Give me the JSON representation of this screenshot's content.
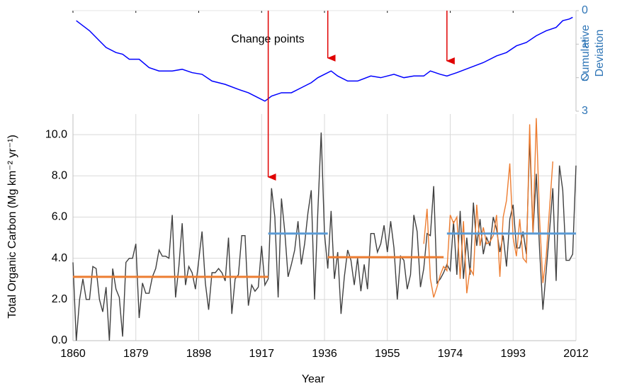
{
  "chart_data": {
    "type": "line",
    "xlabel": "Year",
    "ylabel": "Total Organic Carbon (Mg km⁻² yr⁻¹)",
    "y2label": [
      "Cumulative",
      "Deviation"
    ],
    "annotation": "Change  points",
    "change_points": [
      1919,
      1937,
      1973
    ],
    "xlim": [
      1860,
      2012
    ],
    "xticks": [
      1860,
      1879,
      1898,
      1917,
      1936,
      1955,
      1974,
      1993,
      2012
    ],
    "ylim": [
      0,
      11
    ],
    "yticks": [
      {
        "value": 0,
        "label": "0.0"
      },
      {
        "value": 2,
        "label": "2.0"
      },
      {
        "value": 4,
        "label": "4.0"
      },
      {
        "value": 6,
        "label": "6.0"
      },
      {
        "value": 8,
        "label": "8.0"
      },
      {
        "value": 10,
        "label": "10.0"
      }
    ],
    "y2lim": [
      0,
      3
    ],
    "y2_reversed": true,
    "y2ticks": [
      0,
      1,
      2,
      3
    ],
    "grid": true,
    "x": [
      1860,
      1861,
      1862,
      1863,
      1864,
      1865,
      1866,
      1867,
      1868,
      1869,
      1870,
      1871,
      1872,
      1873,
      1874,
      1875,
      1876,
      1877,
      1878,
      1879,
      1880,
      1881,
      1882,
      1883,
      1884,
      1885,
      1886,
      1887,
      1888,
      1889,
      1890,
      1891,
      1892,
      1893,
      1894,
      1895,
      1896,
      1897,
      1898,
      1899,
      1900,
      1901,
      1902,
      1903,
      1904,
      1905,
      1906,
      1907,
      1908,
      1909,
      1910,
      1911,
      1912,
      1913,
      1914,
      1915,
      1916,
      1917,
      1918,
      1919,
      1920,
      1921,
      1922,
      1923,
      1924,
      1925,
      1926,
      1927,
      1928,
      1929,
      1930,
      1931,
      1932,
      1933,
      1934,
      1935,
      1936,
      1937,
      1938,
      1939,
      1940,
      1941,
      1942,
      1943,
      1944,
      1945,
      1946,
      1947,
      1948,
      1949,
      1950,
      1951,
      1952,
      1953,
      1954,
      1955,
      1956,
      1957,
      1958,
      1959,
      1960,
      1961,
      1962,
      1963,
      1964,
      1965,
      1966,
      1967,
      1968,
      1969,
      1970,
      1971,
      1972,
      1973,
      1974,
      1975,
      1976,
      1977,
      1978,
      1979,
      1980,
      1981,
      1982,
      1983,
      1984,
      1985,
      1986,
      1987,
      1988,
      1989,
      1990,
      1991,
      1992,
      1993,
      1994,
      1995,
      1996,
      1997,
      1998,
      1999,
      2000,
      2001,
      2002,
      2003,
      2004,
      2005,
      2006,
      2007,
      2008,
      2009,
      2010,
      2011,
      2012
    ],
    "series": [
      {
        "color": "#404040",
        "values": [
          3.8,
          0.0,
          2.0,
          3.0,
          2.0,
          2.0,
          3.6,
          3.5,
          2.0,
          1.4,
          2.6,
          0.0,
          3.5,
          2.5,
          2.1,
          0.2,
          3.8,
          4.0,
          4.0,
          4.7,
          1.1,
          2.8,
          2.3,
          2.3,
          3.1,
          3.5,
          4.4,
          4.1,
          4.1,
          4.0,
          6.1,
          2.1,
          3.6,
          5.7,
          2.7,
          3.6,
          3.3,
          2.5,
          3.9,
          5.3,
          2.8,
          1.5,
          3.3,
          3.3,
          3.5,
          3.3,
          2.9,
          5.0,
          1.3,
          3.0,
          3.2,
          5.1,
          5.1,
          1.7,
          2.7,
          2.4,
          2.6,
          4.6,
          2.7,
          3.0,
          7.4,
          6.0,
          2.1,
          6.9,
          5.3,
          3.1,
          3.7,
          4.4,
          5.8,
          3.7,
          4.7,
          6.2,
          7.3,
          2.0,
          6.3,
          10.1,
          5.2,
          3.5,
          6.3,
          3.0,
          4.3,
          1.3,
          3.1,
          4.4,
          3.9,
          2.7,
          4.0,
          2.4,
          3.7,
          2.5,
          5.2,
          5.2,
          4.3,
          4.7,
          5.6,
          4.3,
          5.8,
          4.5,
          2.0,
          4.1,
          3.9,
          2.5,
          3.2,
          6.1,
          5.3,
          2.6,
          3.5,
          5.2,
          5.1,
          7.5,
          2.8,
          3.0,
          3.3,
          3.7,
          3.4,
          5.8,
          3.2,
          6.3,
          3.0,
          5.0,
          3.2,
          6.7,
          4.6,
          5.9,
          4.2,
          5.0,
          4.6,
          6.0,
          5.4,
          4.3,
          5.1,
          3.6,
          5.9,
          6.6,
          4.5,
          4.5,
          5.3,
          4.2,
          9.8,
          5.2,
          8.1,
          4.4,
          1.5,
          3.4,
          5.3,
          7.4,
          2.9,
          8.5,
          7.3,
          3.9,
          3.9,
          4.2,
          8.5
        ]
      },
      {
        "color": "#ed7d31",
        "values": [
          null,
          null,
          null,
          null,
          null,
          null,
          null,
          null,
          null,
          null,
          null,
          null,
          null,
          null,
          null,
          null,
          null,
          null,
          null,
          null,
          null,
          null,
          null,
          null,
          null,
          null,
          null,
          null,
          null,
          null,
          null,
          null,
          null,
          null,
          null,
          null,
          null,
          null,
          null,
          null,
          null,
          null,
          null,
          null,
          null,
          null,
          null,
          null,
          null,
          null,
          null,
          null,
          null,
          null,
          null,
          null,
          null,
          null,
          null,
          null,
          null,
          null,
          null,
          null,
          null,
          null,
          null,
          null,
          null,
          null,
          null,
          null,
          null,
          null,
          null,
          null,
          null,
          null,
          null,
          null,
          null,
          null,
          null,
          null,
          null,
          null,
          null,
          null,
          null,
          null,
          null,
          null,
          null,
          null,
          null,
          null,
          null,
          null,
          null,
          null,
          null,
          null,
          null,
          null,
          null,
          null,
          4.7,
          6.4,
          3.0,
          2.1,
          2.6,
          3.2,
          3.6,
          3.4,
          6.1,
          5.7,
          6.0,
          3.0,
          5.8,
          2.3,
          3.5,
          3.2,
          6.6,
          4.6,
          5.5,
          4.7,
          4.8,
          5.1,
          6.1,
          3.1,
          6.0,
          6.8,
          8.6,
          5.0,
          4.1,
          5.9,
          4.0,
          3.8,
          10.5,
          5.2,
          10.8,
          5.9,
          2.8,
          4.1,
          6.4,
          8.7,
          null,
          null,
          null,
          null,
          null,
          null,
          null
        ]
      },
      {
        "color": "#0000ff",
        "axis": "y2",
        "x": [
          1861,
          1863,
          1865,
          1868,
          1870,
          1873,
          1875,
          1877,
          1880,
          1883,
          1886,
          1890,
          1893,
          1896,
          1899,
          1902,
          1906,
          1910,
          1913,
          1916,
          1918,
          1920,
          1923,
          1926,
          1929,
          1932,
          1934,
          1936,
          1938,
          1940,
          1943,
          1946,
          1950,
          1953,
          1957,
          1960,
          1963,
          1966,
          1968,
          1971,
          1973,
          1976,
          1980,
          1984,
          1988,
          1991,
          1994,
          1997,
          2000,
          2003,
          2006,
          2008,
          2010,
          2011
        ],
        "values": [
          0.3,
          0.45,
          0.6,
          0.9,
          1.1,
          1.25,
          1.3,
          1.45,
          1.45,
          1.7,
          1.8,
          1.8,
          1.75,
          1.85,
          1.9,
          2.1,
          2.2,
          2.35,
          2.45,
          2.6,
          2.7,
          2.55,
          2.45,
          2.45,
          2.3,
          2.15,
          2.0,
          1.9,
          1.8,
          1.95,
          2.1,
          2.1,
          1.95,
          2.0,
          1.9,
          2.0,
          1.95,
          1.95,
          1.8,
          1.9,
          1.95,
          1.85,
          1.7,
          1.55,
          1.35,
          1.25,
          1.05,
          0.95,
          0.75,
          0.6,
          0.5,
          0.3,
          0.25,
          0.2
        ]
      }
    ],
    "segments": [
      {
        "x": [
          1860,
          1919
        ],
        "value": 3.1,
        "color": "#ed7d31"
      },
      {
        "x": [
          1919,
          1937
        ],
        "value": 5.2,
        "color": "#5b9bd5"
      },
      {
        "x": [
          1937,
          1972
        ],
        "value": 4.05,
        "color": "#ed7d31"
      },
      {
        "x": [
          1973,
          2012
        ],
        "value": 5.2,
        "color": "#5b9bd5"
      }
    ]
  }
}
